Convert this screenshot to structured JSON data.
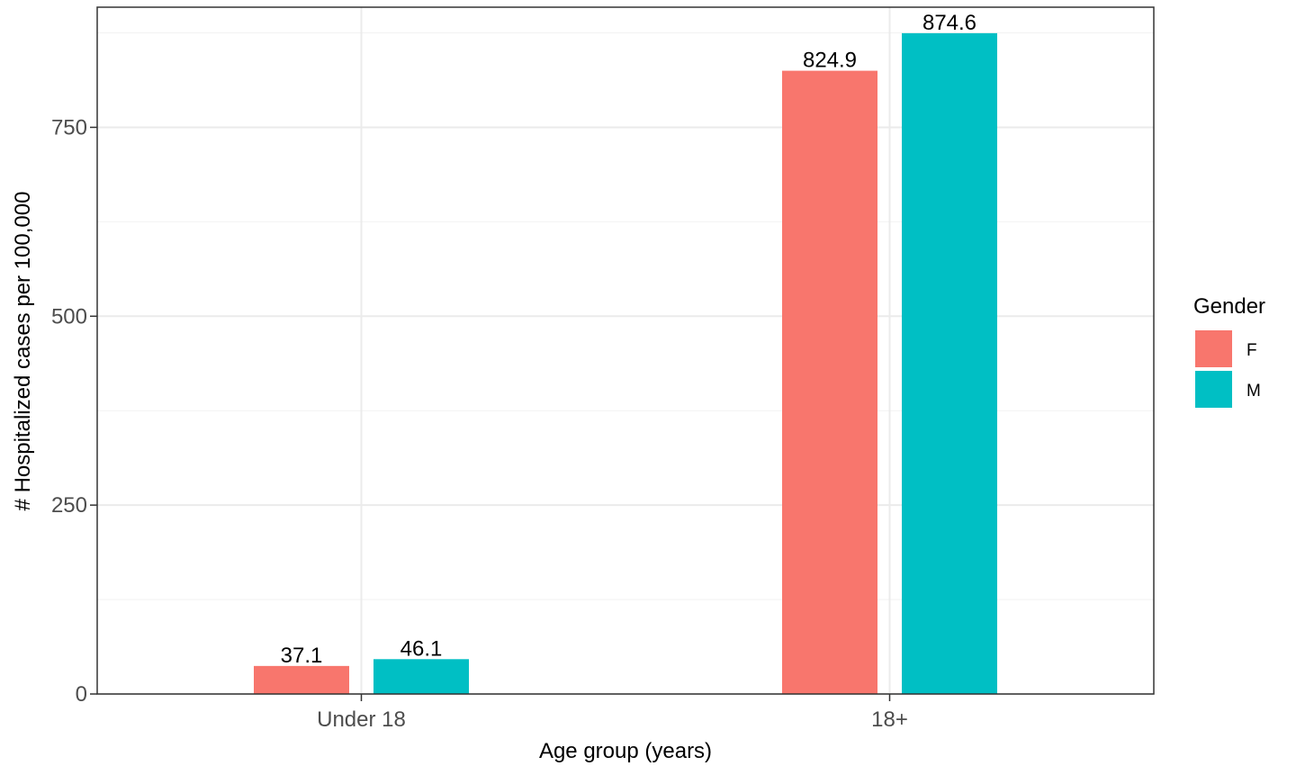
{
  "chart_data": {
    "type": "bar",
    "categories": [
      "Under 18",
      "18+"
    ],
    "series": [
      {
        "name": "F",
        "values": [
          37.1,
          824.9
        ],
        "labels": [
          "37.1",
          "824.9"
        ],
        "color": "#F8766D"
      },
      {
        "name": "M",
        "values": [
          46.1,
          874.6
        ],
        "labels": [
          "46.1",
          "874.6"
        ],
        "color": "#00BFC4"
      }
    ],
    "xlabel": "Age group (years)",
    "ylabel": "# Hospitalized cases per 100,000",
    "ylim": [
      0,
      909
    ],
    "yticks": [
      0,
      250,
      500,
      750
    ],
    "ytick_labels": [
      "0",
      "250",
      "500",
      "750"
    ],
    "grid": true,
    "legend": {
      "title": "Gender",
      "position": "right"
    }
  }
}
